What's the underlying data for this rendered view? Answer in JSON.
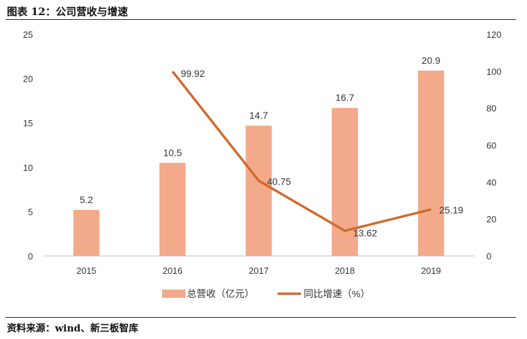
{
  "caption": "图表 12：公司营收与增速",
  "source": "资料来源：wind、新三板智库",
  "chart_data": {
    "type": "bar",
    "categories": [
      "2015",
      "2016",
      "2017",
      "2018",
      "2019"
    ],
    "series": [
      {
        "name": "总营收（亿元）",
        "type": "bar",
        "axis": "left",
        "values": [
          5.2,
          10.5,
          14.7,
          16.7,
          20.9
        ],
        "labels": [
          "5.2",
          "10.5",
          "14.7",
          "16.7",
          "20.9"
        ],
        "color": "#F2AA8A"
      },
      {
        "name": "同比增速（%）",
        "type": "line",
        "axis": "right",
        "values": [
          null,
          99.92,
          40.75,
          13.62,
          25.19
        ],
        "labels": [
          "",
          "99.92",
          "40.75",
          "13.62",
          "25.19"
        ],
        "color": "#D2692E"
      }
    ],
    "y_left": {
      "min": 0,
      "max": 25,
      "step": 5,
      "ticks": [
        "0",
        "5",
        "10",
        "15",
        "20",
        "25"
      ]
    },
    "y_right": {
      "min": 0,
      "max": 120,
      "step": 20,
      "ticks": [
        "0",
        "20",
        "40",
        "60",
        "80",
        "100",
        "120"
      ]
    },
    "grid": false,
    "legend_position": "bottom"
  }
}
